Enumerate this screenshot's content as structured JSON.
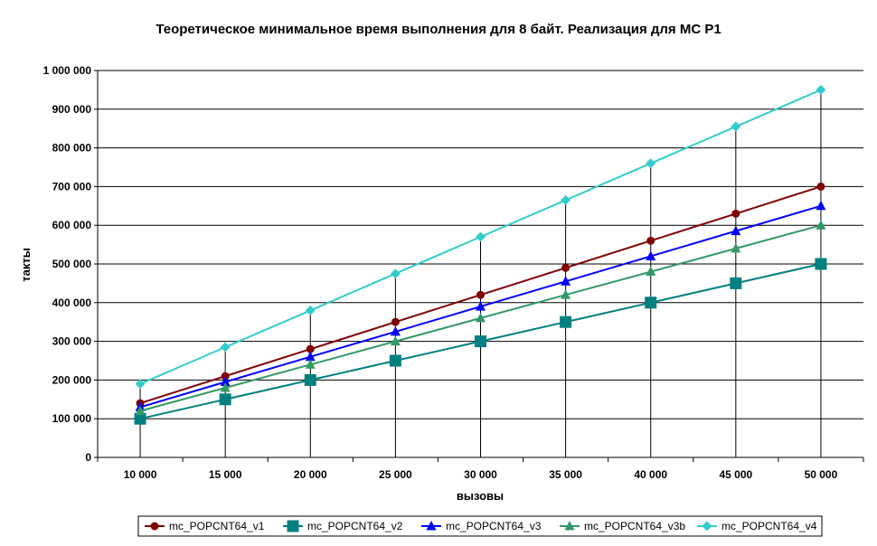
{
  "chart_data": {
    "type": "line",
    "title": "Теоретическое минимальное время выполнения для 8 байт. Реализация для МС Р1",
    "xlabel": "вызовы",
    "ylabel": "такты",
    "x": [
      10000,
      15000,
      20000,
      25000,
      30000,
      35000,
      40000,
      45000,
      50000
    ],
    "x_tick_labels": [
      "10 000",
      "15 000",
      "20 000",
      "25 000",
      "30 000",
      "35 000",
      "40 000",
      "45 000",
      "50 000"
    ],
    "ylim": [
      0,
      1000000
    ],
    "y_ticks": [
      0,
      100000,
      200000,
      300000,
      400000,
      500000,
      600000,
      700000,
      800000,
      900000,
      1000000
    ],
    "y_tick_labels": [
      "0",
      "100 000",
      "200 000",
      "300 000",
      "400 000",
      "500 000",
      "600 000",
      "700 000",
      "800 000",
      "900 000",
      "1 000 000"
    ],
    "grid": "horizontal",
    "drop_lines": true,
    "legend_position": "bottom",
    "series": [
      {
        "name": "mc_POPCNT64_v1",
        "color": "#800000",
        "marker": "circle",
        "values": [
          140000,
          210000,
          280000,
          350000,
          420000,
          490000,
          560000,
          630000,
          700000
        ]
      },
      {
        "name": "mc_POPCNT64_v2",
        "color": "#008080",
        "marker": "square",
        "values": [
          100000,
          150000,
          200000,
          250000,
          300000,
          350000,
          400000,
          450000,
          500000
        ]
      },
      {
        "name": "mc_POPCNT64_v3",
        "color": "#0000FF",
        "marker": "triangle",
        "values": [
          130000,
          195000,
          260000,
          325000,
          390000,
          455000,
          520000,
          585000,
          650000
        ]
      },
      {
        "name": "mc_POPCNT64_v3b",
        "color": "#339966",
        "marker": "triangle",
        "values": [
          120000,
          180000,
          240000,
          300000,
          360000,
          420000,
          480000,
          540000,
          600000
        ]
      },
      {
        "name": "mc_POPCNT64_v4",
        "color": "#33CCCC",
        "marker": "diamond",
        "values": [
          190000,
          285000,
          380000,
          475000,
          570000,
          665000,
          760000,
          855000,
          950000
        ]
      }
    ]
  }
}
